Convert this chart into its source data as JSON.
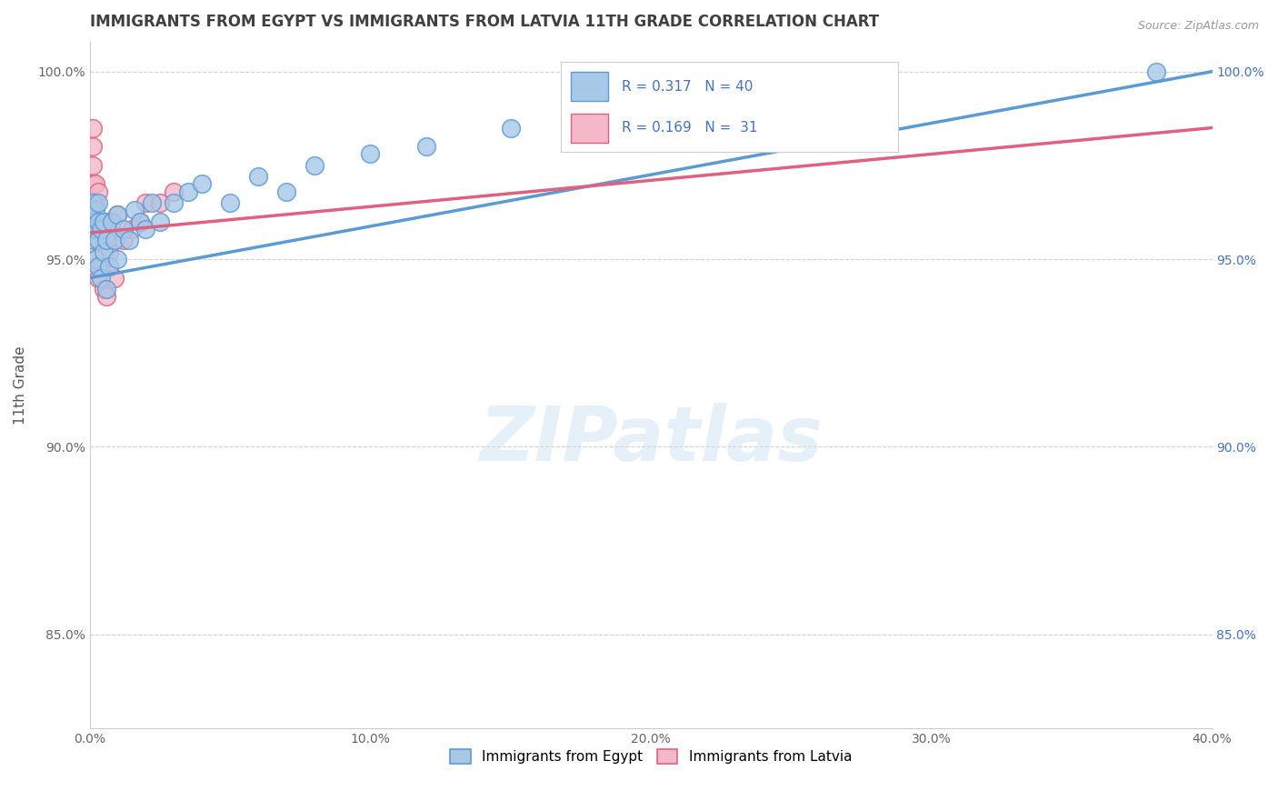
{
  "title": "IMMIGRANTS FROM EGYPT VS IMMIGRANTS FROM LATVIA 11TH GRADE CORRELATION CHART",
  "source": "Source: ZipAtlas.com",
  "ylabel": "11th Grade",
  "watermark": "ZIPatlas",
  "xlim": [
    0.0,
    0.4
  ],
  "ylim": [
    0.825,
    1.008
  ],
  "xtick_labels": [
    "0.0%",
    "10.0%",
    "20.0%",
    "30.0%",
    "40.0%"
  ],
  "xtick_values": [
    0.0,
    0.1,
    0.2,
    0.3,
    0.4
  ],
  "ytick_labels": [
    "85.0%",
    "90.0%",
    "95.0%",
    "100.0%"
  ],
  "ytick_values": [
    0.85,
    0.9,
    0.95,
    1.0
  ],
  "right_ytick_labels": [
    "100.0%",
    "95.0%",
    "90.0%",
    "85.0%"
  ],
  "right_ytick_values": [
    1.0,
    0.95,
    0.9,
    0.85
  ],
  "R_egypt": 0.317,
  "N_egypt": 40,
  "R_latvia": 0.169,
  "N_latvia": 31,
  "color_egypt": "#a8c8e8",
  "color_egypt_edge": "#5b9bd5",
  "color_egypt_line": "#5b9bd5",
  "color_latvia": "#f4b8c8",
  "color_latvia_edge": "#e06080",
  "color_latvia_line": "#e06080",
  "color_stat": "#4472c4",
  "title_color": "#404040",
  "egypt_x": [
    0.001,
    0.001,
    0.001,
    0.002,
    0.002,
    0.002,
    0.003,
    0.003,
    0.003,
    0.003,
    0.004,
    0.004,
    0.005,
    0.005,
    0.006,
    0.006,
    0.007,
    0.008,
    0.009,
    0.01,
    0.01,
    0.012,
    0.014,
    0.016,
    0.018,
    0.02,
    0.022,
    0.025,
    0.03,
    0.035,
    0.04,
    0.05,
    0.06,
    0.07,
    0.08,
    0.1,
    0.12,
    0.15,
    0.2,
    0.38
  ],
  "egypt_y": [
    0.955,
    0.96,
    0.965,
    0.95,
    0.958,
    0.963,
    0.948,
    0.955,
    0.96,
    0.965,
    0.945,
    0.958,
    0.952,
    0.96,
    0.942,
    0.955,
    0.948,
    0.96,
    0.955,
    0.95,
    0.962,
    0.958,
    0.955,
    0.963,
    0.96,
    0.958,
    0.965,
    0.96,
    0.965,
    0.968,
    0.97,
    0.965,
    0.972,
    0.968,
    0.975,
    0.978,
    0.98,
    0.985,
    0.99,
    1.0
  ],
  "latvia_x": [
    0.001,
    0.001,
    0.001,
    0.001,
    0.001,
    0.001,
    0.002,
    0.002,
    0.002,
    0.002,
    0.002,
    0.003,
    0.003,
    0.003,
    0.003,
    0.004,
    0.004,
    0.005,
    0.005,
    0.006,
    0.006,
    0.007,
    0.008,
    0.009,
    0.01,
    0.012,
    0.015,
    0.018,
    0.02,
    0.025,
    0.03
  ],
  "latvia_y": [
    0.96,
    0.965,
    0.97,
    0.975,
    0.98,
    0.985,
    0.95,
    0.955,
    0.96,
    0.965,
    0.97,
    0.945,
    0.955,
    0.96,
    0.968,
    0.948,
    0.958,
    0.942,
    0.955,
    0.94,
    0.96,
    0.952,
    0.958,
    0.945,
    0.962,
    0.955,
    0.958,
    0.96,
    0.965,
    0.965,
    0.968
  ],
  "egypt_trend_x": [
    0.0,
    0.4
  ],
  "egypt_trend_y": [
    0.945,
    1.0
  ],
  "latvia_trend_x": [
    0.0,
    0.4
  ],
  "latvia_trend_y": [
    0.957,
    0.985
  ],
  "legend_entries": [
    "Immigrants from Egypt",
    "Immigrants from Latvia"
  ],
  "title_fontsize": 12,
  "axis_label_fontsize": 11,
  "tick_fontsize": 10,
  "watermark_fontsize": 60,
  "watermark_color": "#c8dff0",
  "watermark_alpha": 0.45
}
